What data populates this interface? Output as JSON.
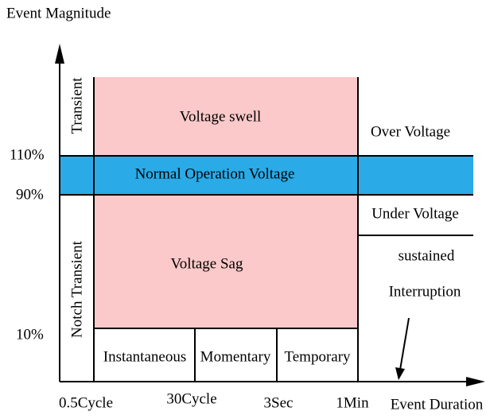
{
  "axes": {
    "y_title": "Event Magnitude",
    "x_title": "Event Duration",
    "y_labels": [
      "110%",
      "90%",
      "10%"
    ],
    "x_labels": [
      "0.5Cycle",
      "30Cycle",
      "3Sec",
      "1Min"
    ]
  },
  "regions": {
    "transient": "Transient",
    "notch_transient": "Notch Transient",
    "swell": "Voltage swell",
    "normal": "Normal Operation Voltage",
    "sag": "Voltage Sag",
    "over": "Over Voltage",
    "under": "Under Voltage",
    "sustained": [
      "sustained",
      "Interruption"
    ]
  },
  "durations": [
    "Instantaneous",
    "Momentary",
    "Temporary"
  ]
}
